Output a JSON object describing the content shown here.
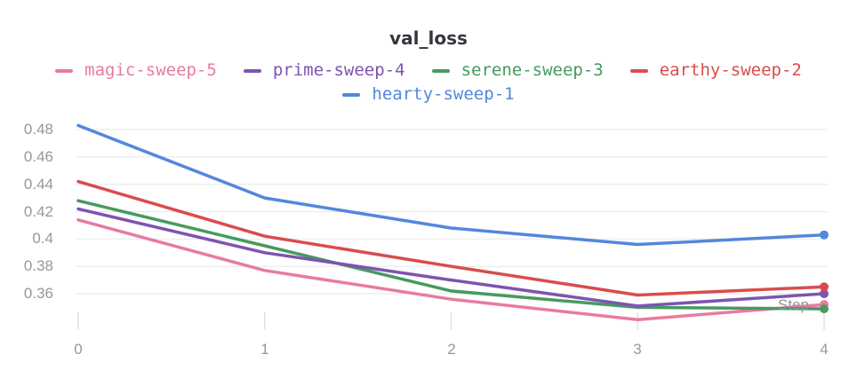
{
  "title": "val_loss",
  "axes": {
    "x_title": "Step",
    "x_tick_labels": [
      "0",
      "1",
      "2",
      "3",
      "4"
    ],
    "y_tick_labels": [
      "0.48",
      "0.46",
      "0.44",
      "0.42",
      "0.4",
      "0.38",
      "0.36"
    ]
  },
  "colors": {
    "background": "#ffffff",
    "title_text": "#33373d",
    "axis_text": "#94989f",
    "gridline": "#e7e7e9",
    "tick_mark": "#e0e1e3"
  },
  "chart_data": {
    "type": "line",
    "title": "val_loss",
    "xlabel": "Step",
    "ylabel": "",
    "x": [
      0,
      1,
      2,
      3,
      4
    ],
    "xlim": [
      0,
      4
    ],
    "ylim": [
      0.34,
      0.49
    ],
    "ytick_values": [
      0.48,
      0.46,
      0.44,
      0.42,
      0.4,
      0.38,
      0.36
    ],
    "grid": "horizontal",
    "legend_position": "top",
    "end_markers": true,
    "draw_order": [
      0,
      2,
      1,
      3,
      4
    ],
    "series": [
      {
        "name": "magic-sweep-5",
        "color": "#E87B9F",
        "values": [
          0.414,
          0.377,
          0.356,
          0.341,
          0.352
        ]
      },
      {
        "name": "prime-sweep-4",
        "color": "#7D54B2",
        "values": [
          0.422,
          0.39,
          0.37,
          0.351,
          0.36
        ]
      },
      {
        "name": "serene-sweep-3",
        "color": "#479A5F",
        "values": [
          0.428,
          0.395,
          0.362,
          0.35,
          0.349
        ]
      },
      {
        "name": "earthy-sweep-2",
        "color": "#DA4C4C",
        "values": [
          0.442,
          0.402,
          0.38,
          0.359,
          0.365
        ]
      },
      {
        "name": "hearty-sweep-1",
        "color": "#5387DD",
        "values": [
          0.483,
          0.43,
          0.408,
          0.396,
          0.403
        ]
      }
    ]
  }
}
